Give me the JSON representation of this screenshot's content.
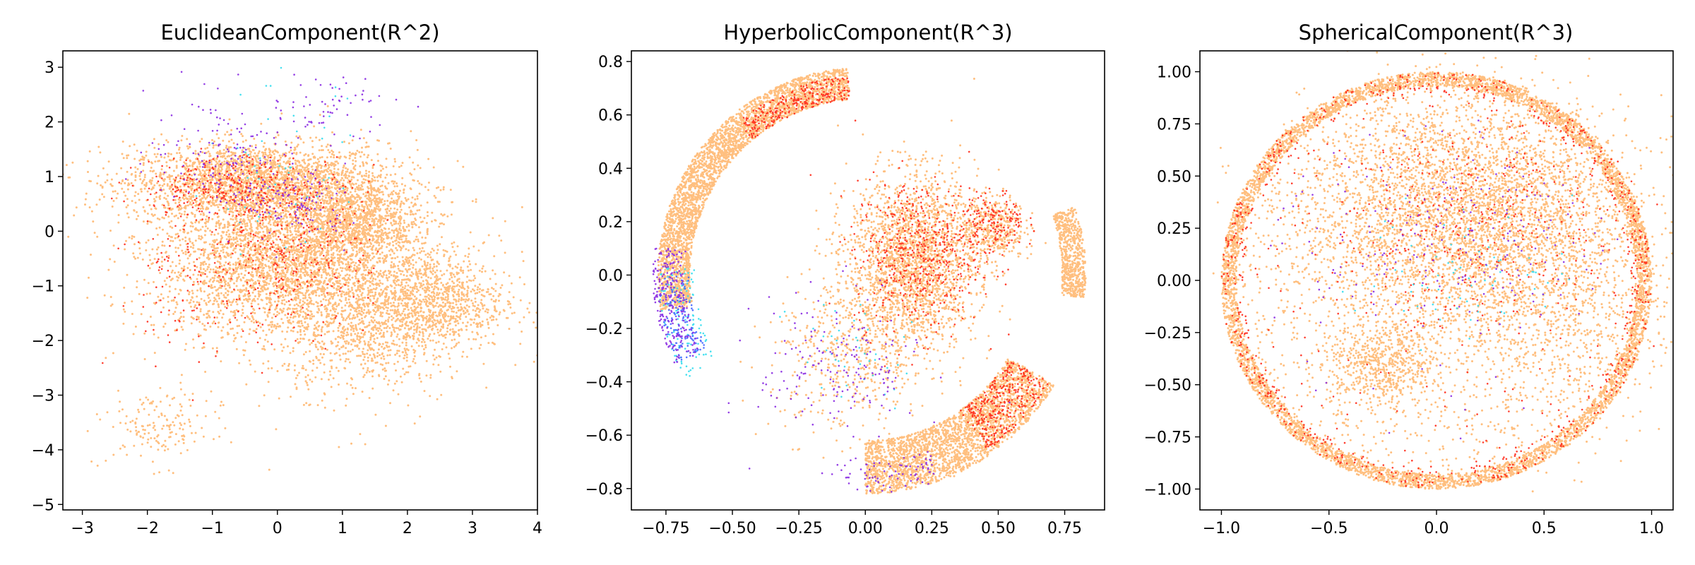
{
  "chart_data": [
    {
      "type": "scatter",
      "title": "EuclideanComponent(R^2)",
      "xlabel": "",
      "ylabel": "",
      "xlim": [
        -3.3,
        4.0
      ],
      "ylim": [
        -5.1,
        3.3
      ],
      "xticks": [
        -3,
        -2,
        -1,
        0,
        1,
        2,
        3,
        4
      ],
      "yticks": [
        3,
        2,
        1,
        0,
        -1,
        -2,
        -3,
        -4,
        -5
      ],
      "xtick_labels": [
        "−3",
        "−2",
        "−1",
        "0",
        "1",
        "2",
        "3",
        "4"
      ],
      "ytick_labels": [
        "3",
        "2",
        "1",
        "0",
        "−1",
        "−2",
        "−3",
        "−4",
        "−5"
      ],
      "grid": false,
      "legend": "none",
      "colors": {
        "orange": "#ffb469",
        "red": "#ff2a1a",
        "purple": "#8a2be2",
        "cyan": "#33ddee",
        "blue": "#4466ff"
      },
      "clusters": [
        {
          "color": "orange",
          "cx": -0.3,
          "cy": 0.9,
          "sx": 1.0,
          "sy": 0.35,
          "n": 2600
        },
        {
          "color": "orange",
          "cx": 0.2,
          "cy": -0.6,
          "sx": 1.0,
          "sy": 0.65,
          "n": 3200
        },
        {
          "color": "orange",
          "cx": 1.2,
          "cy": 0.2,
          "sx": 0.5,
          "sy": 0.3,
          "n": 900
        },
        {
          "color": "orange",
          "cx": 2.3,
          "cy": -1.3,
          "sx": 0.6,
          "sy": 0.45,
          "n": 1100
        },
        {
          "color": "orange",
          "cx": 1.3,
          "cy": -2.0,
          "sx": 0.6,
          "sy": 0.5,
          "n": 500
        },
        {
          "color": "orange",
          "cx": -1.8,
          "cy": -3.6,
          "sx": 0.4,
          "sy": 0.35,
          "n": 160
        },
        {
          "color": "orange",
          "cx": 0.5,
          "cy": -1.0,
          "sx": 1.5,
          "sy": 1.2,
          "n": 400
        },
        {
          "color": "red",
          "cx": -0.5,
          "cy": 0.8,
          "sx": 0.8,
          "sy": 0.3,
          "n": 350
        },
        {
          "color": "red",
          "cx": 0.0,
          "cy": -0.6,
          "sx": 0.7,
          "sy": 0.6,
          "n": 300
        },
        {
          "color": "red",
          "cx": -1.5,
          "cy": -1.0,
          "sx": 0.5,
          "sy": 0.8,
          "n": 80
        },
        {
          "color": "purple",
          "cx": -0.8,
          "cy": 1.5,
          "sx": 0.6,
          "sy": 0.5,
          "n": 140
        },
        {
          "color": "purple",
          "cx": 0.3,
          "cy": 0.5,
          "sx": 0.4,
          "sy": 0.35,
          "n": 120
        },
        {
          "color": "purple",
          "cx": 0.8,
          "cy": 2.3,
          "sx": 0.5,
          "sy": 0.3,
          "n": 60
        },
        {
          "color": "cyan",
          "cx": 0.1,
          "cy": 1.0,
          "sx": 0.6,
          "sy": 0.8,
          "n": 50
        }
      ]
    },
    {
      "type": "scatter",
      "title": "HyperbolicComponent(R^3)",
      "xlabel": "",
      "ylabel": "",
      "xlim": [
        -0.88,
        0.9
      ],
      "ylim": [
        -0.88,
        0.84
      ],
      "xticks": [
        -0.75,
        -0.5,
        -0.25,
        0.0,
        0.25,
        0.5,
        0.75
      ],
      "yticks": [
        0.8,
        0.6,
        0.4,
        0.2,
        0.0,
        -0.2,
        -0.4,
        -0.6,
        -0.8
      ],
      "xtick_labels": [
        "−0.75",
        "−0.50",
        "−0.25",
        "0.00",
        "0.25",
        "0.50",
        "0.75"
      ],
      "ytick_labels": [
        "0.8",
        "0.6",
        "0.4",
        "0.2",
        "0.0",
        "−0.2",
        "−0.4",
        "−0.6",
        "−0.8"
      ],
      "grid": false,
      "legend": "none",
      "colors": {
        "orange": "#ffb469",
        "red": "#ff2a1a",
        "purple": "#8a2be2",
        "cyan": "#33ddee",
        "blue": "#4466ff"
      },
      "arcs": [
        {
          "color": "orange",
          "r": [
            0.66,
            0.78
          ],
          "a": [
            95,
            190
          ],
          "n": 3200
        },
        {
          "color": "red",
          "r": [
            0.66,
            0.75
          ],
          "a": [
            95,
            130
          ],
          "n": 260
        },
        {
          "color": "orange",
          "r": [
            0.62,
            0.82
          ],
          "a": [
            -90,
            -30
          ],
          "n": 2600
        },
        {
          "color": "red",
          "r": [
            0.62,
            0.8
          ],
          "a": [
            -55,
            -30
          ],
          "n": 320
        },
        {
          "color": "orange",
          "r": [
            0.74,
            0.83
          ],
          "a": [
            -6,
            18
          ],
          "n": 600
        },
        {
          "color": "purple",
          "r": [
            0.68,
            0.8
          ],
          "a": [
            172,
            205
          ],
          "n": 240
        },
        {
          "color": "blue",
          "r": [
            0.66,
            0.78
          ],
          "a": [
            180,
            205
          ],
          "n": 140
        },
        {
          "color": "cyan",
          "r": [
            0.64,
            0.78
          ],
          "a": [
            178,
            210
          ],
          "n": 120
        },
        {
          "color": "purple",
          "r": [
            0.7,
            0.82
          ],
          "a": [
            -100,
            -70
          ],
          "n": 80
        }
      ],
      "clusters": [
        {
          "color": "orange",
          "cx": 0.18,
          "cy": 0.05,
          "sx": 0.12,
          "sy": 0.16,
          "n": 2200
        },
        {
          "color": "red",
          "cx": 0.2,
          "cy": 0.08,
          "sx": 0.12,
          "sy": 0.14,
          "n": 500
        },
        {
          "color": "orange",
          "cx": 0.48,
          "cy": 0.18,
          "sx": 0.06,
          "sy": 0.06,
          "n": 400
        },
        {
          "color": "red",
          "cx": 0.48,
          "cy": 0.2,
          "sx": 0.06,
          "sy": 0.06,
          "n": 160
        },
        {
          "color": "orange",
          "cx": -0.05,
          "cy": -0.3,
          "sx": 0.15,
          "sy": 0.15,
          "n": 500
        },
        {
          "color": "purple",
          "cx": -0.1,
          "cy": -0.35,
          "sx": 0.15,
          "sy": 0.14,
          "n": 180
        },
        {
          "color": "cyan",
          "cx": -0.05,
          "cy": -0.3,
          "sx": 0.12,
          "sy": 0.12,
          "n": 40
        }
      ]
    },
    {
      "type": "scatter",
      "title": "SphericalComponent(R^3)",
      "xlabel": "",
      "ylabel": "",
      "xlim": [
        -1.1,
        1.1
      ],
      "ylim": [
        -1.1,
        1.1
      ],
      "xticks": [
        -1.0,
        -0.5,
        0.0,
        0.5,
        1.0
      ],
      "yticks": [
        1.0,
        0.75,
        0.5,
        0.25,
        0.0,
        -0.25,
        -0.5,
        -0.75,
        -1.0
      ],
      "xtick_labels": [
        "−1.0",
        "−0.5",
        "0.0",
        "0.5",
        "1.0"
      ],
      "ytick_labels": [
        "1.00",
        "0.75",
        "0.50",
        "0.25",
        "0.00",
        "−0.25",
        "−0.50",
        "−0.75",
        "−1.00"
      ],
      "grid": false,
      "legend": "none",
      "colors": {
        "orange": "#ffb469",
        "red": "#ff2a1a",
        "purple": "#8a2be2",
        "cyan": "#33ddee",
        "blue": "#4466ff"
      },
      "rings": [
        {
          "color": "orange",
          "r": [
            0.93,
            1.0
          ],
          "n": 7000
        },
        {
          "color": "red",
          "r": [
            0.9,
            1.0
          ],
          "n": 650
        }
      ],
      "disks": [
        {
          "color": "orange",
          "r": 1.0,
          "n": 1800
        },
        {
          "color": "red",
          "r": 1.0,
          "n": 220
        },
        {
          "color": "purple",
          "r": 0.8,
          "n": 70
        }
      ],
      "clusters": [
        {
          "color": "orange",
          "cx": 0.15,
          "cy": 0.3,
          "sx": 0.38,
          "sy": 0.28,
          "n": 3800
        },
        {
          "color": "red",
          "cx": 0.2,
          "cy": 0.25,
          "sx": 0.35,
          "sy": 0.25,
          "n": 300
        },
        {
          "color": "purple",
          "cx": 0.1,
          "cy": 0.2,
          "sx": 0.3,
          "sy": 0.2,
          "n": 150
        },
        {
          "color": "cyan",
          "cx": 0.15,
          "cy": 0.05,
          "sx": 0.25,
          "sy": 0.15,
          "n": 70
        },
        {
          "color": "orange",
          "cx": -0.25,
          "cy": -0.4,
          "sx": 0.12,
          "sy": 0.1,
          "n": 550
        },
        {
          "color": "orange",
          "cx": 0.6,
          "cy": -0.2,
          "sx": 0.25,
          "sy": 0.3,
          "n": 500
        }
      ]
    }
  ]
}
